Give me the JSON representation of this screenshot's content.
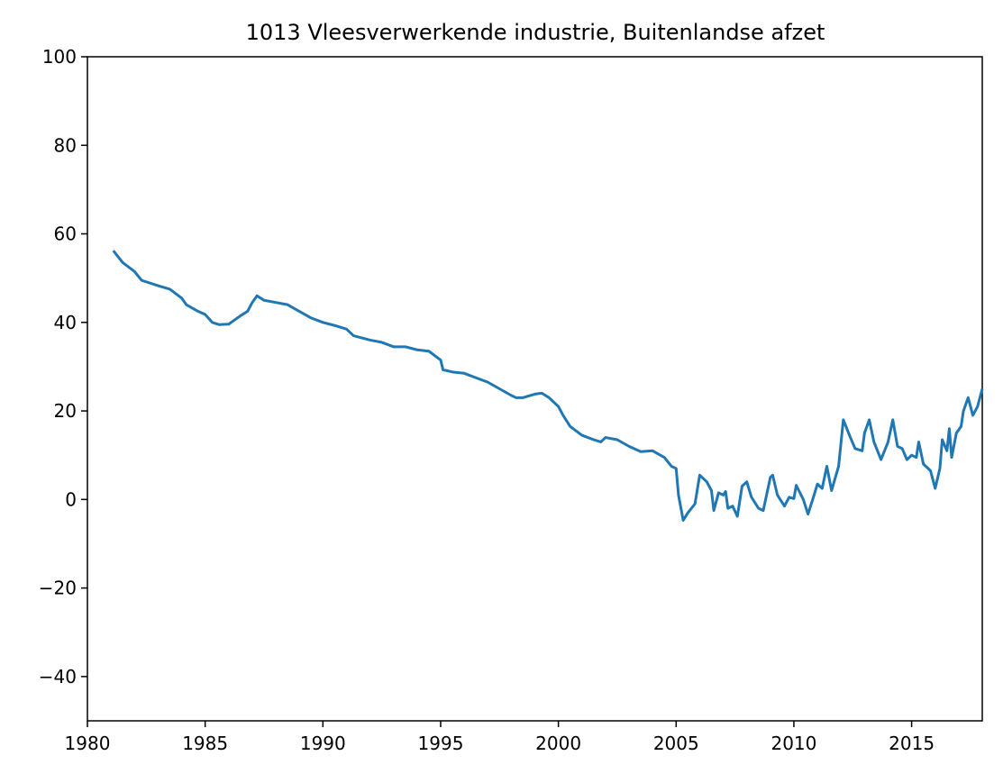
{
  "chart_data": {
    "type": "line",
    "title": "1013 Vleesverwerkende industrie, Buitenlandse afzet",
    "x": [
      1981.1,
      1981.5,
      1982.0,
      1982.3,
      1983.0,
      1983.5,
      1984.0,
      1984.2,
      1984.7,
      1985.0,
      1985.3,
      1985.6,
      1986.0,
      1986.5,
      1986.8,
      1987.0,
      1987.2,
      1987.5,
      1988.0,
      1988.5,
      1989.0,
      1989.5,
      1990.0,
      1990.5,
      1991.0,
      1991.3,
      1992.0,
      1992.5,
      1993.0,
      1993.5,
      1994.0,
      1994.5,
      1995.0,
      1995.1,
      1995.5,
      1996.0,
      1996.5,
      1997.0,
      1997.5,
      1998.0,
      1998.2,
      1998.5,
      1999.0,
      1999.3,
      1999.6,
      2000.0,
      2000.2,
      2000.5,
      2001.0,
      2001.5,
      2001.8,
      2002.0,
      2002.5,
      2003.0,
      2003.5,
      2004.0,
      2004.5,
      2004.8,
      2005.0,
      2005.1,
      2005.3,
      2005.5,
      2005.8,
      2006.0,
      2006.3,
      2006.5,
      2006.6,
      2006.8,
      2007.0,
      2007.1,
      2007.2,
      2007.4,
      2007.6,
      2007.8,
      2008.0,
      2008.2,
      2008.5,
      2008.7,
      2009.0,
      2009.1,
      2009.3,
      2009.6,
      2009.8,
      2010.0,
      2010.1,
      2010.4,
      2010.6,
      2010.8,
      2011.0,
      2011.2,
      2011.4,
      2011.6,
      2011.9,
      2012.1,
      2012.4,
      2012.6,
      2012.9,
      2013.0,
      2013.2,
      2013.4,
      2013.7,
      2014.0,
      2014.2,
      2014.4,
      2014.6,
      2014.8,
      2015.0,
      2015.2,
      2015.3,
      2015.5,
      2015.8,
      2016.0,
      2016.2,
      2016.3,
      2016.5,
      2016.6,
      2016.7,
      2016.9,
      2017.1,
      2017.2,
      2017.4,
      2017.6,
      2017.8,
      2017.9,
      2018.0
    ],
    "series": [
      {
        "color": "#1f77b4",
        "values": [
          56.2,
          53.5,
          51.5,
          49.5,
          48.3,
          47.5,
          45.5,
          44,
          42.5,
          41.8,
          40,
          39.5,
          39.6,
          41.5,
          42.5,
          44.5,
          46,
          45,
          44.5,
          44,
          42.5,
          41,
          40,
          39.3,
          38.5,
          37,
          36,
          35.5,
          34.5,
          34.5,
          33.8,
          33.5,
          31.5,
          29.3,
          28.8,
          28.5,
          27.5,
          26.5,
          25,
          23.5,
          23,
          23,
          23.8,
          24,
          23,
          21,
          19,
          16.5,
          14.5,
          13.5,
          13,
          14,
          13.5,
          12,
          10.8,
          11,
          9.5,
          7.5,
          7,
          1,
          -4.7,
          -3,
          -1,
          5.5,
          4,
          2,
          -2.5,
          1.5,
          1,
          1.8,
          -2,
          -1.5,
          -3.8,
          3,
          4,
          0.5,
          -2,
          -2.5,
          5,
          5.5,
          1,
          -1.5,
          0.5,
          0.2,
          3.2,
          0,
          -3.3,
          0,
          3.5,
          2.5,
          7.5,
          2,
          7.5,
          18,
          14,
          11.5,
          11,
          15,
          18,
          13,
          9,
          13,
          18,
          12,
          11.5,
          9,
          10,
          9.5,
          13,
          8,
          6.5,
          2.5,
          7,
          13.5,
          11,
          16,
          9.5,
          15,
          16.5,
          20,
          23,
          19,
          21,
          23,
          25
        ]
      }
    ],
    "xlim": [
      1980,
      2018
    ],
    "xticks": [
      1980,
      1985,
      1990,
      1995,
      2000,
      2005,
      2010,
      2015
    ],
    "ylim": [
      -50,
      100
    ],
    "yticks": [
      {
        "value": -40,
        "label": "−40"
      },
      {
        "value": -20,
        "label": "−20"
      },
      0,
      20,
      40,
      60,
      80,
      100
    ]
  }
}
